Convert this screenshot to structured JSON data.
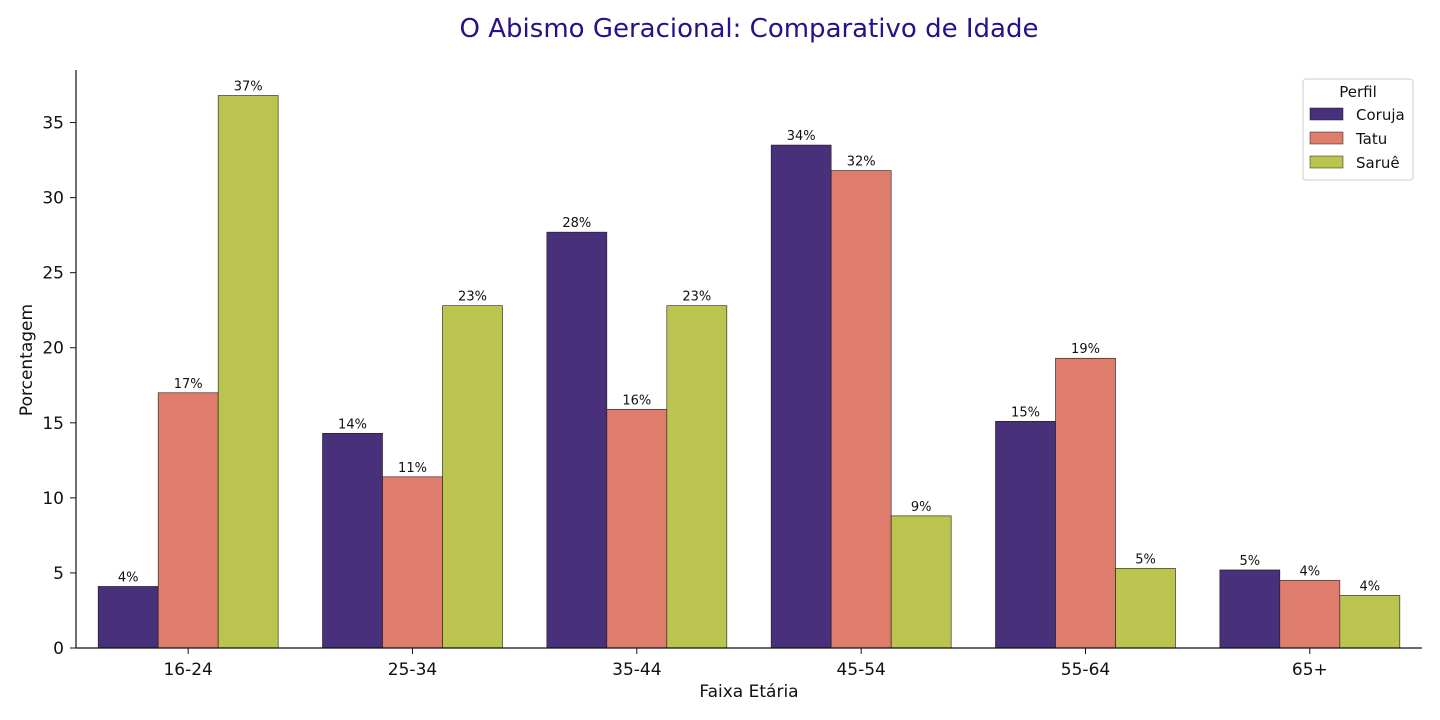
{
  "chart_data": {
    "type": "bar",
    "title": "O Abismo Geracional: Comparativo de Idade",
    "xlabel": "Faixa Etária",
    "ylabel": "Porcentagem",
    "ylim": [
      0,
      38.5
    ],
    "yticks": [
      0,
      5,
      10,
      15,
      20,
      25,
      30,
      35
    ],
    "grid": false,
    "legend": {
      "title": "Perfil",
      "position": "top-right"
    },
    "categories": [
      "16-24",
      "25-34",
      "35-44",
      "45-54",
      "55-64",
      "65+"
    ],
    "series": [
      {
        "name": "Coruja",
        "color": "#48307a",
        "values": [
          4.1,
          14.3,
          27.7,
          33.5,
          15.1,
          5.2
        ],
        "labels": [
          "4%",
          "14%",
          "28%",
          "34%",
          "15%",
          "5%"
        ]
      },
      {
        "name": "Tatu",
        "color": "#df7d6c",
        "values": [
          17.0,
          11.4,
          15.9,
          31.8,
          19.3,
          4.5
        ],
        "labels": [
          "17%",
          "11%",
          "16%",
          "32%",
          "19%",
          "4%"
        ]
      },
      {
        "name": "Saruê",
        "color": "#bbc44f",
        "values": [
          36.8,
          22.8,
          22.8,
          8.8,
          5.3,
          3.5
        ],
        "labels": [
          "37%",
          "23%",
          "23%",
          "9%",
          "5%",
          "4%"
        ]
      }
    ]
  }
}
